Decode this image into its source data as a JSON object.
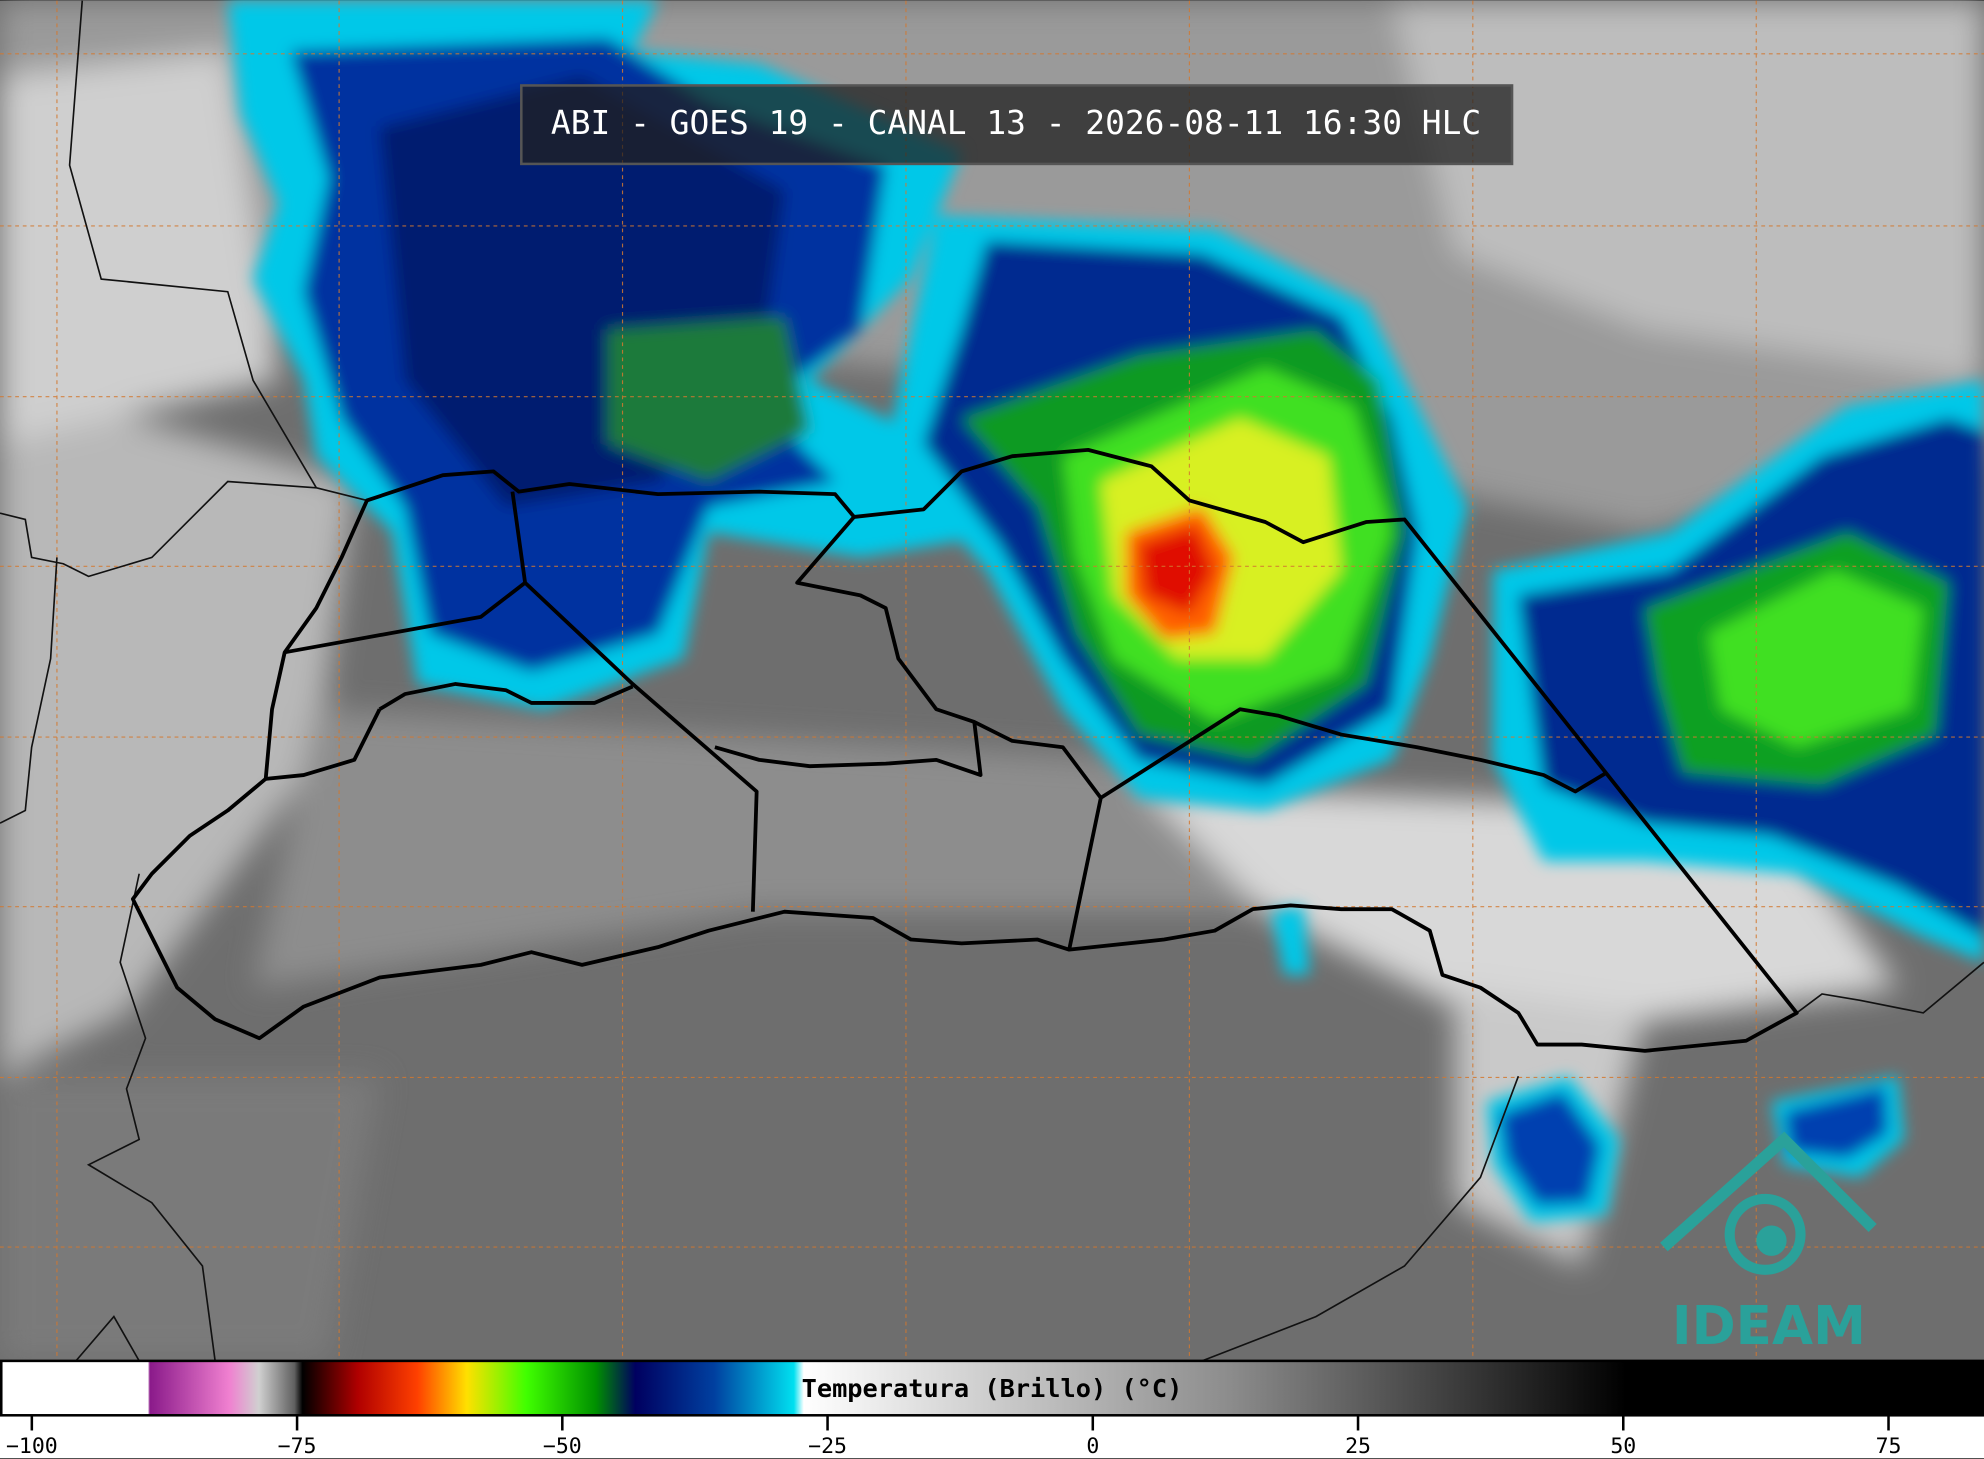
{
  "header": {
    "title": "ABI - GOES 19 - CANAL 13 - 2026-08-11 16:30 HLC"
  },
  "colorbar": {
    "label": "Temperatura (Brillo) (°C)",
    "range": [
      -103,
      84
    ],
    "ticks": [
      {
        "value": -100,
        "label": "−100"
      },
      {
        "value": -75,
        "label": "−75"
      },
      {
        "value": -50,
        "label": "−50"
      },
      {
        "value": -25,
        "label": "−25"
      },
      0,
      25,
      50,
      75
    ]
  },
  "logo": {
    "text": "IDEAM"
  }
}
